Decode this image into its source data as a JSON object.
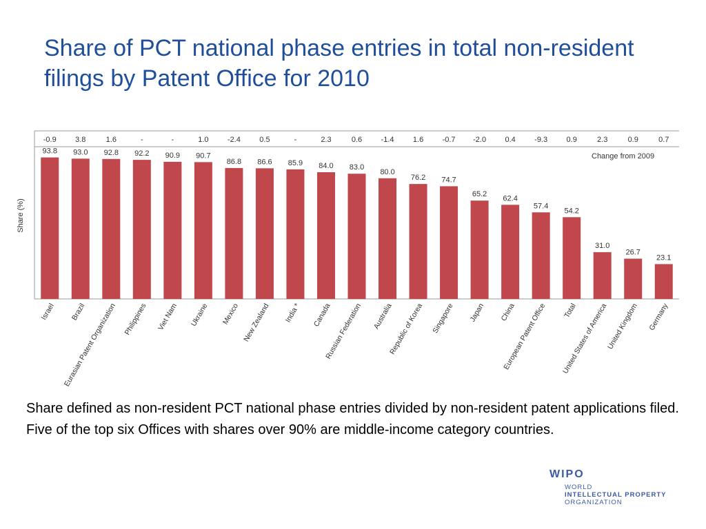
{
  "slide": {
    "title": "Share of PCT national phase entries in total non-resident filings by Patent Office for 2010",
    "caption": "Share defined as non-resident PCT national phase entries divided by non-resident patent applications filed.  Five of the top six Offices with shares over 90% are middle-income category countries."
  },
  "logo": {
    "name": "WIPO",
    "line1": "WORLD",
    "line2": "INTELLECTUAL PROPERTY",
    "line3": "ORGANIZATION"
  },
  "chart_data": {
    "type": "bar",
    "ylabel": "Share (%)",
    "change_label": "Change from 2009",
    "categories": [
      "Israel",
      "Brazil",
      "Eurasian Patent Organization",
      "Philippines",
      "Viet Nam",
      "Ukraine",
      "Mexico",
      "New Zealand",
      "India *",
      "Canada",
      "Russian Federation",
      "Australia",
      "Republic of Korea",
      "Singapore",
      "Japan",
      "China",
      "European Patent Office",
      "Total",
      "United States of America",
      "United Kingdom",
      "Germany"
    ],
    "values": [
      93.8,
      93.0,
      92.8,
      92.2,
      90.9,
      90.7,
      86.8,
      86.6,
      85.9,
      84.0,
      83.0,
      80.0,
      76.2,
      74.7,
      65.2,
      62.4,
      57.4,
      54.2,
      31.0,
      26.7,
      23.1
    ],
    "value_labels": [
      "93.8",
      "93.0",
      "92.8",
      "92.2",
      "90.9",
      "90.7",
      "86.8",
      "86.6",
      "85.9",
      "84.0",
      "83.0",
      "80.0",
      "76.2",
      "74.7",
      "65.2",
      "62.4",
      "57.4",
      "54.2",
      "31.0",
      "26.7",
      "23.1"
    ],
    "change_from_2009": [
      "-0.9",
      "3.8",
      "1.6",
      "-",
      "-",
      "1.0",
      "-2.4",
      "0.5",
      "-",
      "2.3",
      "0.6",
      "-1.4",
      "1.6",
      "-0.7",
      "-2.0",
      "0.4",
      "-9.3",
      "0.9",
      "2.3",
      "0.9",
      "0.7"
    ],
    "ylim": [
      0,
      100
    ],
    "grid": false,
    "bar_color": "#c0474c",
    "text_color": "#333333"
  }
}
